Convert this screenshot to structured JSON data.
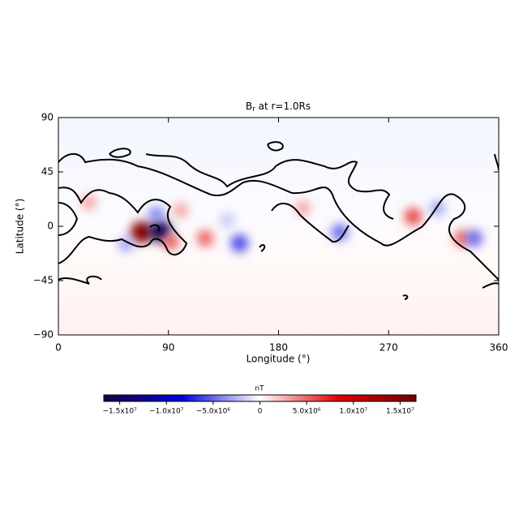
{
  "chart_data": {
    "type": "map",
    "title": "B",
    "title_sub": "r",
    "title_rest": " at r=1.0Rs",
    "x_label": "Longitude (°)",
    "y_label": "Latitude (°)",
    "xlim": [
      0,
      360
    ],
    "ylim": [
      -90,
      90
    ],
    "xticks": [
      0,
      90,
      180,
      270,
      360
    ],
    "yticks": [
      {
        "value": -90,
        "label": "−90"
      },
      {
        "value": -45,
        "label": "−45"
      },
      0,
      45,
      90
    ],
    "colorbar_label": "nT",
    "clim": [
      -16700000,
      16700000
    ],
    "colormap": [
      "#1a0040",
      "#0000e0",
      "#ffffff",
      "#e00000",
      "#700000"
    ],
    "cticks": [
      {
        "value": -15000000,
        "label": "−1.5x10⁷"
      },
      {
        "value": -10000000,
        "label": "−1.0x10⁷"
      },
      {
        "value": -5000000,
        "label": "−5.0x10⁶"
      },
      0,
      {
        "value": 5000000,
        "label": "5.0x10⁶"
      },
      {
        "value": 10000000,
        "label": "1.0x10⁷"
      },
      {
        "value": 15000000,
        "label": "1.5x10⁷"
      }
    ],
    "features": {
      "lon": [
        68,
        83,
        92,
        100,
        80,
        120,
        148,
        138,
        230,
        290,
        330,
        340,
        25,
        200,
        310,
        55
      ],
      "lat": [
        -5,
        -4,
        -13,
        13,
        10,
        -10,
        -14,
        5,
        -5,
        8,
        -10,
        -10,
        20,
        15,
        15,
        -15
      ],
      "values": [
        15000000,
        -16000000,
        5000000,
        3000000,
        -4000000,
        5000000,
        -6000000,
        -2000000,
        -5000000,
        6000000,
        5000000,
        -5000000,
        3000000,
        3000000,
        -3000000,
        -3000000
      ]
    }
  }
}
